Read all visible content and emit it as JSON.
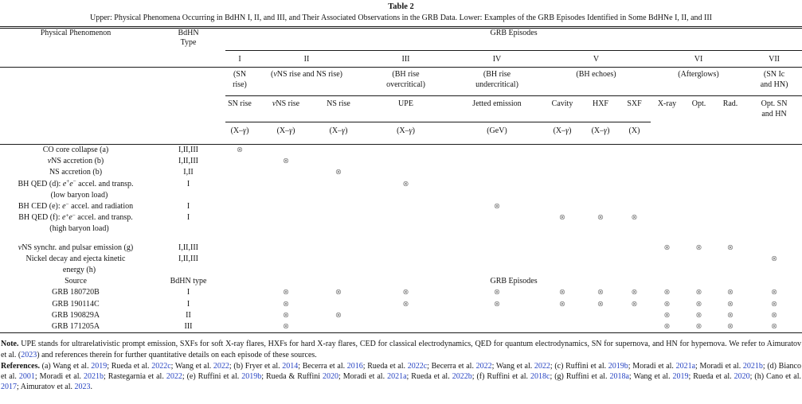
{
  "colors": {
    "link": "#2643c2",
    "mark": "#7b7b7b",
    "rule": "#1a1a1a"
  },
  "page": {
    "title": "Table 2",
    "caption": "Upper: Physical Phenomena Occurring in BdHN I, II, and III, and Their Associated Observations in the GRB Data. Lower: Examples of the GRB Episodes Identified in Some BdHNe I, II, and III"
  },
  "table": {
    "phen_header": "Physical Phenomenon",
    "type_header_lines": [
      "BdHN",
      "Type"
    ],
    "episodes_header": "GRB Episodes",
    "mark_glyph": "⊗",
    "groups": [
      {
        "numeral": "I",
        "span": 1,
        "desc_lines": [
          [
            {
              "t": "(SN"
            }
          ],
          [
            {
              "t": "rise)"
            }
          ]
        ]
      },
      {
        "numeral": "II",
        "span": 2,
        "desc_lines": [
          [
            {
              "t": "("
            },
            {
              "t": "ν",
              "i": 1
            },
            {
              "t": "NS rise and NS rise)"
            }
          ]
        ]
      },
      {
        "numeral": "III",
        "span": 1,
        "desc_lines": [
          [
            {
              "t": "(BH rise"
            }
          ],
          [
            {
              "t": "overcritical)"
            }
          ]
        ]
      },
      {
        "numeral": "IV",
        "span": 1,
        "desc_lines": [
          [
            {
              "t": "(BH rise"
            }
          ],
          [
            {
              "t": "undercritical)"
            }
          ]
        ]
      },
      {
        "numeral": "V",
        "span": 3,
        "desc_lines": [
          [
            {
              "t": "(BH echoes)"
            }
          ]
        ]
      },
      {
        "numeral": "VI",
        "span": 3,
        "desc_lines": [
          [
            {
              "t": "(Afterglows)"
            }
          ]
        ]
      },
      {
        "numeral": "VII",
        "span": 1,
        "desc_lines": [
          [
            {
              "t": "(SN Ic"
            }
          ],
          [
            {
              "t": "and HN)"
            }
          ]
        ]
      }
    ],
    "subcolumns": [
      {
        "key": "sn_rise",
        "label_lines": [
          [
            {
              "t": "SN rise"
            }
          ]
        ],
        "band": [
          {
            "t": "(X–"
          },
          {
            "t": "γ",
            "i": 1
          },
          {
            "t": ")"
          }
        ],
        "ruled": true
      },
      {
        "key": "nns_rise",
        "label_lines": [
          [
            {
              "t": "ν",
              "i": 1
            },
            {
              "t": "NS rise"
            }
          ]
        ],
        "band": [
          {
            "t": "(X–"
          },
          {
            "t": "γ",
            "i": 1
          },
          {
            "t": ")"
          }
        ],
        "ruled": true
      },
      {
        "key": "ns_rise",
        "label_lines": [
          [
            {
              "t": "NS rise"
            }
          ]
        ],
        "band": [
          {
            "t": "(X–"
          },
          {
            "t": "γ",
            "i": 1
          },
          {
            "t": ")"
          }
        ],
        "ruled": true
      },
      {
        "key": "upe",
        "label_lines": [
          [
            {
              "t": "UPE"
            }
          ]
        ],
        "band": [
          {
            "t": "(X–"
          },
          {
            "t": "γ",
            "i": 1
          },
          {
            "t": ")"
          }
        ],
        "ruled": true
      },
      {
        "key": "jetted",
        "label_lines": [
          [
            {
              "t": "Jetted emission"
            }
          ]
        ],
        "band": [
          {
            "t": "(GeV)"
          }
        ],
        "ruled": true
      },
      {
        "key": "cavity",
        "label_lines": [
          [
            {
              "t": "Cavity"
            }
          ]
        ],
        "band": [
          {
            "t": "(X–"
          },
          {
            "t": "γ",
            "i": 1
          },
          {
            "t": ")"
          }
        ],
        "ruled": true
      },
      {
        "key": "hxf",
        "label_lines": [
          [
            {
              "t": "HXF"
            }
          ]
        ],
        "band": [
          {
            "t": "(X–"
          },
          {
            "t": "γ",
            "i": 1
          },
          {
            "t": ")"
          }
        ],
        "ruled": true
      },
      {
        "key": "sxf",
        "label_lines": [
          [
            {
              "t": "SXF"
            }
          ]
        ],
        "band": [
          {
            "t": "(X)"
          }
        ],
        "ruled": true
      },
      {
        "key": "xray",
        "label_lines": [
          [
            {
              "t": "X-ray"
            }
          ]
        ],
        "band": [],
        "ruled": false
      },
      {
        "key": "opt",
        "label_lines": [
          [
            {
              "t": "Opt."
            }
          ]
        ],
        "band": [],
        "ruled": false
      },
      {
        "key": "rad",
        "label_lines": [
          [
            {
              "t": "Rad."
            }
          ]
        ],
        "band": [],
        "ruled": false
      },
      {
        "key": "optsn",
        "label_lines": [
          [
            {
              "t": "Opt. SN"
            }
          ],
          [
            {
              "t": "and HN"
            }
          ]
        ],
        "band": [],
        "ruled": false
      }
    ],
    "phenomena_rows": [
      {
        "label_lines": [
          [
            {
              "t": "CO core collapse (a)"
            }
          ]
        ],
        "type": "I,II,III",
        "marks": [
          "sn_rise"
        ]
      },
      {
        "label_lines": [
          [
            {
              "t": "ν",
              "i": 1
            },
            {
              "t": "NS accretion (b)"
            }
          ]
        ],
        "type": "I,II,III",
        "marks": [
          "nns_rise"
        ]
      },
      {
        "label_lines": [
          [
            {
              "t": "NS accretion (b)"
            }
          ]
        ],
        "type": "I,II",
        "marks": [
          "ns_rise"
        ]
      },
      {
        "label_lines": [
          [
            {
              "t": "BH QED (d): "
            },
            {
              "t": "e",
              "i": 1
            },
            {
              "t": "+",
              "sup": 1
            },
            {
              "t": "e",
              "i": 1
            },
            {
              "t": "−",
              "sup": 1
            },
            {
              "t": " accel. and transp."
            }
          ],
          [
            {
              "t": "(low baryon load)",
              "indent": 1
            }
          ]
        ],
        "type": "I",
        "marks": [
          "upe"
        ]
      },
      {
        "label_lines": [
          [
            {
              "t": "BH CED (e): "
            },
            {
              "t": "e",
              "i": 1
            },
            {
              "t": "−",
              "sup": 1
            },
            {
              "t": " accel. and radiation"
            }
          ]
        ],
        "type": "I",
        "marks": [
          "jetted"
        ]
      },
      {
        "label_lines": [
          [
            {
              "t": "BH QED (f): "
            },
            {
              "t": "e",
              "i": 1
            },
            {
              "t": "+",
              "sup": 1
            },
            {
              "t": "e",
              "i": 1
            },
            {
              "t": "−",
              "sup": 1
            },
            {
              "t": " accel. and transp."
            }
          ],
          [
            {
              "t": "(high baryon load)",
              "indent": 1
            }
          ]
        ],
        "type": "I",
        "marks": [
          "cavity",
          "hxf",
          "sxf"
        ]
      },
      {
        "label_lines": [
          [
            {
              "t": "ν",
              "i": 1
            },
            {
              "t": "NS synchr. and pulsar emission (g)"
            }
          ]
        ],
        "type": "I,II,III",
        "marks": [
          "xray",
          "opt",
          "rad"
        ],
        "gap_top": true
      },
      {
        "label_lines": [
          [
            {
              "t": "Nickel decay and ejecta kinetic"
            }
          ],
          [
            {
              "t": "energy (h)",
              "indent": 1
            }
          ]
        ],
        "type": "I,II,III",
        "marks": [
          "optsn"
        ]
      }
    ],
    "source_row": {
      "label": "Source",
      "type": "BdHN type",
      "episodes": "GRB Episodes"
    },
    "grb_rows": [
      {
        "label": "GRB 180720B",
        "type": "I",
        "marks": [
          "nns_rise",
          "ns_rise",
          "upe",
          "jetted",
          "cavity",
          "hxf",
          "sxf",
          "xray",
          "opt",
          "rad",
          "optsn"
        ]
      },
      {
        "label": "GRB 190114C",
        "type": "I",
        "marks": [
          "nns_rise",
          "upe",
          "jetted",
          "cavity",
          "hxf",
          "sxf",
          "xray",
          "opt",
          "rad",
          "optsn"
        ]
      },
      {
        "label": "GRB 190829A",
        "type": "II",
        "marks": [
          "nns_rise",
          "ns_rise",
          "xray",
          "opt",
          "rad",
          "optsn"
        ]
      },
      {
        "label": "GRB 171205A",
        "type": "III",
        "marks": [
          "nns_rise",
          "xray",
          "opt",
          "rad",
          "optsn"
        ]
      }
    ]
  },
  "note": {
    "segments": [
      {
        "t": "Note.",
        "b": 1
      },
      {
        "t": " UPE stands for ultrarelativistic prompt emission, SXFs for soft X-ray flares, HXFs for hard X-ray flares, CED for classical electrodynamics, QED for quantum electrodynamics, SN for supernova, and HN for hypernova. We refer to Aimuratov et al. ("
      },
      {
        "t": "2023",
        "link": 1
      },
      {
        "t": ") and references therein for further quantitative details on each episode of these sources."
      }
    ]
  },
  "references": {
    "segments": [
      {
        "t": "References.",
        "b": 1
      },
      {
        "t": " (a) Wang et al. "
      },
      {
        "t": "2019",
        "link": 1
      },
      {
        "t": "; Rueda et al. "
      },
      {
        "t": "2022c",
        "link": 1
      },
      {
        "t": "; Wang et al. "
      },
      {
        "t": "2022",
        "link": 1
      },
      {
        "t": "; (b) Fryer et al. "
      },
      {
        "t": "2014",
        "link": 1
      },
      {
        "t": "; Becerra et al. "
      },
      {
        "t": "2016",
        "link": 1
      },
      {
        "t": "; Rueda et al. "
      },
      {
        "t": "2022c",
        "link": 1
      },
      {
        "t": "; Becerra et al. "
      },
      {
        "t": "2022",
        "link": 1
      },
      {
        "t": "; Wang et al. "
      },
      {
        "t": "2022",
        "link": 1
      },
      {
        "t": "; (c) Ruffini et al. "
      },
      {
        "t": "2019b",
        "link": 1
      },
      {
        "t": "; Moradi et al. "
      },
      {
        "t": "2021a",
        "link": 1
      },
      {
        "t": "; Moradi et al. "
      },
      {
        "t": "2021b",
        "link": 1
      },
      {
        "t": "; (d) Bianco et al. "
      },
      {
        "t": "2001",
        "link": 1
      },
      {
        "t": "; Moradi et al. "
      },
      {
        "t": "2021b",
        "link": 1
      },
      {
        "t": "; Rastegarnia et al. "
      },
      {
        "t": "2022",
        "link": 1
      },
      {
        "t": "; (e) Ruffini et al. "
      },
      {
        "t": "2019b",
        "link": 1
      },
      {
        "t": "; Rueda & Ruffini "
      },
      {
        "t": "2020",
        "link": 1
      },
      {
        "t": "; Moradi et al. "
      },
      {
        "t": "2021a",
        "link": 1
      },
      {
        "t": "; Rueda et al. "
      },
      {
        "t": "2022b",
        "link": 1
      },
      {
        "t": "; (f) Ruffini et al. "
      },
      {
        "t": "2018c",
        "link": 1
      },
      {
        "t": "; (g) Ruffini et al. "
      },
      {
        "t": "2018a",
        "link": 1
      },
      {
        "t": "; Wang et al. "
      },
      {
        "t": "2019",
        "link": 1
      },
      {
        "t": "; Rueda et al. "
      },
      {
        "t": "2020",
        "link": 1
      },
      {
        "t": "; (h) Cano et al. "
      },
      {
        "t": "2017",
        "link": 1
      },
      {
        "t": "; Aimuratov et al. "
      },
      {
        "t": "2023",
        "link": 1
      },
      {
        "t": "."
      }
    ]
  }
}
